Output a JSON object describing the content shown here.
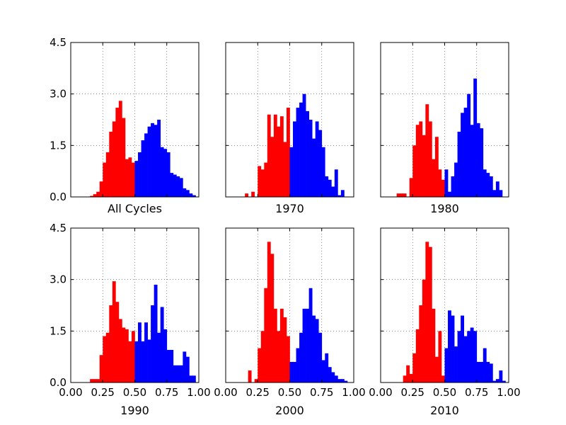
{
  "colors": {
    "below": "#ff0000",
    "above": "#0000ff"
  },
  "chart_data": {
    "type": "bar",
    "layout": "2x3 grid of histograms",
    "shared_x": true,
    "shared_y": true,
    "xlim": [
      0,
      1
    ],
    "ylim": [
      0,
      4.5
    ],
    "xticks": [
      "0.00",
      "0.25",
      "0.50",
      "0.75",
      "1.00"
    ],
    "yticks": [
      "0.0",
      "1.5",
      "3.0",
      "4.5"
    ],
    "grid": true,
    "bin_width": 0.025,
    "split_at": 0.5,
    "panels": [
      {
        "title": "All Cycles",
        "bins_start": [
          0.15,
          0.175,
          0.2,
          0.225,
          0.25,
          0.275,
          0.3,
          0.325,
          0.35,
          0.375,
          0.4,
          0.425,
          0.45,
          0.475,
          0.5,
          0.525,
          0.55,
          0.575,
          0.6,
          0.625,
          0.65,
          0.675,
          0.7,
          0.725,
          0.75,
          0.775,
          0.8,
          0.825,
          0.85,
          0.875,
          0.9,
          0.925,
          0.95
        ],
        "values": [
          0.03,
          0.08,
          0.15,
          0.45,
          1.0,
          1.3,
          1.9,
          2.2,
          2.6,
          2.8,
          2.3,
          1.1,
          1.15,
          1.0,
          1.05,
          1.3,
          1.65,
          1.85,
          2.05,
          2.15,
          2.1,
          2.25,
          1.45,
          1.4,
          1.3,
          0.7,
          0.65,
          0.6,
          0.55,
          0.25,
          0.2,
          0.1,
          0.05
        ]
      },
      {
        "title": "1970",
        "bins_start": [
          0.15,
          0.175,
          0.2,
          0.225,
          0.25,
          0.275,
          0.3,
          0.325,
          0.35,
          0.375,
          0.4,
          0.425,
          0.45,
          0.475,
          0.5,
          0.525,
          0.55,
          0.575,
          0.6,
          0.625,
          0.65,
          0.675,
          0.7,
          0.725,
          0.75,
          0.775,
          0.8,
          0.825,
          0.85,
          0.875,
          0.9
        ],
        "values": [
          0.1,
          0.0,
          0.15,
          0.0,
          0.9,
          0.8,
          1.0,
          2.4,
          1.75,
          2.4,
          2.05,
          2.35,
          1.6,
          2.6,
          1.45,
          2.2,
          2.6,
          2.75,
          3.0,
          2.5,
          2.25,
          1.7,
          2.2,
          1.95,
          1.45,
          0.6,
          0.5,
          0.3,
          0.8,
          0.05,
          0.2
        ]
      },
      {
        "title": "1980",
        "bins_start": [
          0.125,
          0.15,
          0.175,
          0.2,
          0.225,
          0.25,
          0.275,
          0.3,
          0.325,
          0.35,
          0.375,
          0.4,
          0.425,
          0.45,
          0.475,
          0.5,
          0.525,
          0.55,
          0.575,
          0.6,
          0.625,
          0.65,
          0.675,
          0.7,
          0.725,
          0.75,
          0.775,
          0.8,
          0.825,
          0.85,
          0.875,
          0.9,
          0.925
        ],
        "values": [
          0.1,
          0.1,
          0.1,
          0.0,
          0.55,
          1.5,
          2.1,
          2.2,
          1.8,
          2.7,
          2.2,
          1.1,
          1.75,
          0.8,
          0.5,
          0.8,
          0.15,
          0.6,
          1.0,
          1.9,
          2.45,
          2.6,
          3.0,
          2.1,
          3.45,
          2.15,
          2.0,
          0.8,
          0.7,
          0.6,
          0.2,
          0.45,
          0.2
        ]
      },
      {
        "title": "1990",
        "bins_start": [
          0.15,
          0.175,
          0.2,
          0.225,
          0.25,
          0.275,
          0.3,
          0.325,
          0.35,
          0.375,
          0.4,
          0.425,
          0.45,
          0.475,
          0.5,
          0.525,
          0.55,
          0.575,
          0.6,
          0.625,
          0.65,
          0.675,
          0.7,
          0.725,
          0.75,
          0.775,
          0.8,
          0.825,
          0.85,
          0.875,
          0.9,
          0.925,
          0.95
        ],
        "values": [
          0.1,
          0.1,
          0.1,
          0.8,
          1.35,
          1.45,
          2.25,
          2.95,
          2.35,
          1.85,
          1.6,
          1.55,
          1.2,
          1.5,
          1.2,
          1.75,
          1.2,
          1.75,
          1.25,
          2.25,
          2.85,
          1.45,
          2.2,
          1.55,
          0.95,
          0.95,
          0.5,
          0.5,
          0.5,
          0.9,
          0.75,
          0.2,
          0.2
        ]
      },
      {
        "title": "2000",
        "bins_start": [
          0.175,
          0.2,
          0.225,
          0.25,
          0.275,
          0.3,
          0.325,
          0.35,
          0.375,
          0.4,
          0.425,
          0.45,
          0.475,
          0.5,
          0.525,
          0.55,
          0.575,
          0.6,
          0.625,
          0.65,
          0.675,
          0.7,
          0.725,
          0.75,
          0.775,
          0.8,
          0.825,
          0.85,
          0.875,
          0.9,
          0.925
        ],
        "values": [
          0.35,
          0.0,
          0.1,
          1.0,
          1.5,
          2.75,
          4.1,
          3.75,
          2.15,
          1.5,
          2.15,
          1.9,
          1.35,
          0.6,
          0.6,
          1.0,
          1.45,
          2.15,
          2.15,
          2.75,
          1.95,
          1.85,
          1.45,
          0.65,
          0.85,
          0.45,
          0.3,
          0.2,
          0.1,
          0.1,
          0.05
        ]
      },
      {
        "title": "2010",
        "bins_start": [
          0.175,
          0.2,
          0.225,
          0.25,
          0.275,
          0.3,
          0.325,
          0.35,
          0.375,
          0.4,
          0.425,
          0.45,
          0.475,
          0.5,
          0.525,
          0.55,
          0.575,
          0.6,
          0.625,
          0.65,
          0.675,
          0.7,
          0.725,
          0.75,
          0.775,
          0.8,
          0.825,
          0.85,
          0.875,
          0.9,
          0.925,
          0.95
        ],
        "values": [
          0.2,
          0.5,
          0.25,
          0.85,
          1.55,
          2.25,
          3.0,
          4.1,
          3.95,
          2.15,
          0.75,
          1.5,
          0.2,
          1.0,
          2.1,
          1.95,
          1.05,
          1.5,
          1.95,
          1.35,
          1.5,
          1.6,
          1.5,
          0.6,
          0.6,
          1.0,
          0.6,
          0.55,
          0.05,
          0.1,
          0.35,
          0.05
        ]
      }
    ]
  }
}
